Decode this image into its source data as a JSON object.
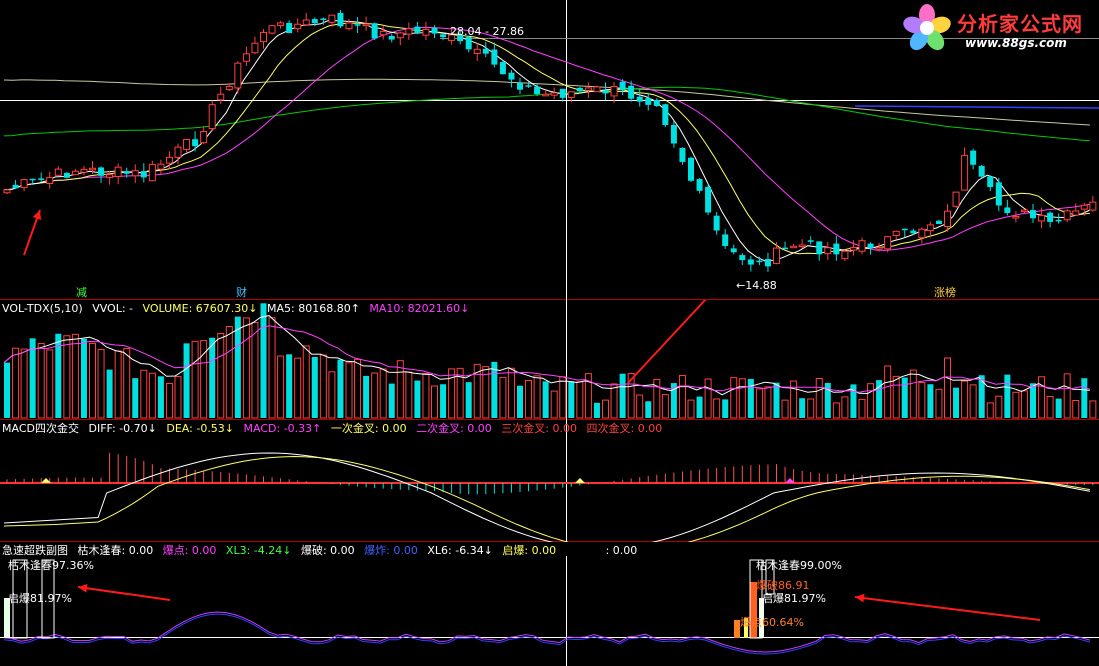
{
  "colors": {
    "up": "#ff4040",
    "down": "#00e0e0",
    "ma5": "#ffffff",
    "ma10": "#ffff66",
    "ma20": "#ff40ff",
    "ma60": "#00cc00",
    "ma120": "#c8c8a0",
    "border": "#b00000",
    "macd_dea": "#ffff66",
    "macd_diff": "#ffffff",
    "blue": "#3040ff"
  },
  "main": {
    "price_label": "28.04 - 27.86",
    "low_label": "←14.88",
    "tag_left": "减",
    "tag_mid": "财",
    "tag_right": "涨榜"
  },
  "vol": {
    "name": "VOL-TDX(5,10)",
    "vvol": "VVOL: -",
    "volume": "VOLUME: 67607.30↓",
    "ma5": "MA5: 80168.80↑",
    "ma10": "MA10: 82021.60↓"
  },
  "macd": {
    "name": "MACD四次金交",
    "diff": "DIFF: -0.70↓",
    "dea": "DEA: -0.53↓",
    "macd": "MACD: -0.33↑",
    "g1": "一次金叉: 0.00",
    "g2": "二次金叉: 0.00",
    "g3": "三次金叉: 0.00",
    "g4": "四次金叉: 0.00"
  },
  "sub": {
    "name": "急速超跌副图",
    "kumu": "枯木逢春: 0.00",
    "baodian": "爆点: 0.00",
    "xl3": "XL3: -4.24↓",
    "baopo": "爆破: 0.00",
    "baozha": "爆炸: 0.00",
    "xl6": "XL6: -6.34↓",
    "qibao": "启爆: 0.00",
    "extra": ": 0.00",
    "left_top": "枯木逢春97.36%",
    "left_mid": "启爆81.97%",
    "right_top": "枯木逢春99.00%",
    "right_baopo": "爆破86.91",
    "right_qibao": "启爆81.97%",
    "right_bottom": "爆点60.64%"
  },
  "logo": {
    "title": "分析家公式网",
    "url": "www.88gs.com"
  },
  "icons": {
    "logo": "flower-logo-icon",
    "arrow": "red-arrow-icon"
  }
}
